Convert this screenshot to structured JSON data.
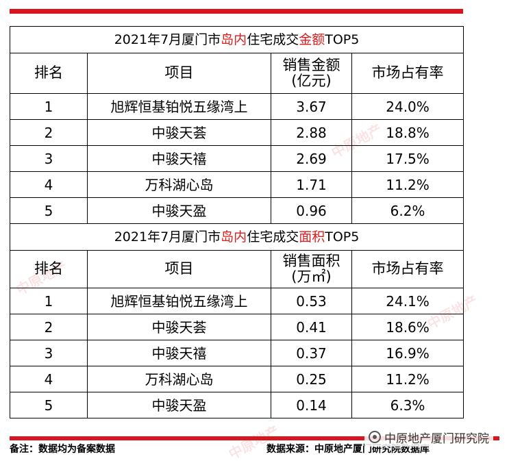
{
  "table1": {
    "title_prefix": "2021年7月厦门市",
    "title_red1": "岛内",
    "title_mid": "住宅成交",
    "title_red2": "金额",
    "title_suffix": "TOP5",
    "headers": [
      "排名",
      "项目",
      "销售金额",
      "(亿元)",
      "市场占有率"
    ],
    "rows": [
      {
        "rank": "1",
        "project": "旭辉恒基铂悦五缘湾上",
        "value": "3.67",
        "share": "24.0%"
      },
      {
        "rank": "2",
        "project": "中骏天荟",
        "value": "2.88",
        "share": "18.8%"
      },
      {
        "rank": "3",
        "project": "中骏天禧",
        "value": "2.69",
        "share": "17.5%"
      },
      {
        "rank": "4",
        "project": "万科湖心岛",
        "value": "1.71",
        "share": "11.2%"
      },
      {
        "rank": "5",
        "project": "中骏天盈",
        "value": "0.96",
        "share": "6.2%"
      }
    ]
  },
  "table2": {
    "title_prefix": "2021年7月厦门市",
    "title_red1": "岛内",
    "title_mid": "住宅成交",
    "title_red2": "面积",
    "title_suffix": "TOP5",
    "headers": [
      "排名",
      "项目",
      "销售面积",
      "(万㎡)",
      "市场占有率"
    ],
    "rows": [
      {
        "rank": "1",
        "project": "旭辉恒基铂悦五缘湾上",
        "value": "0.53",
        "share": "24.1%"
      },
      {
        "rank": "2",
        "project": "中骏天荟",
        "value": "0.41",
        "share": "18.6%"
      },
      {
        "rank": "3",
        "project": "中骏天禧",
        "value": "0.37",
        "share": "16.9%"
      },
      {
        "rank": "4",
        "project": "万科湖心岛",
        "value": "0.25",
        "share": "11.2%"
      },
      {
        "rank": "5",
        "project": "中骏天盈",
        "value": "0.14",
        "share": "6.3%"
      }
    ]
  },
  "footer": {
    "note": "备注：数据均为备案数据",
    "source": "数据来源：中原地产厦门研究院数据库"
  },
  "badge": {
    "label": "中原地产厦门研究院",
    "icon": "wechat-icon"
  },
  "watermark": {
    "text": "中原地产"
  },
  "colors": {
    "accent_red": "#d7161d",
    "title_red": "#e11a1a"
  }
}
